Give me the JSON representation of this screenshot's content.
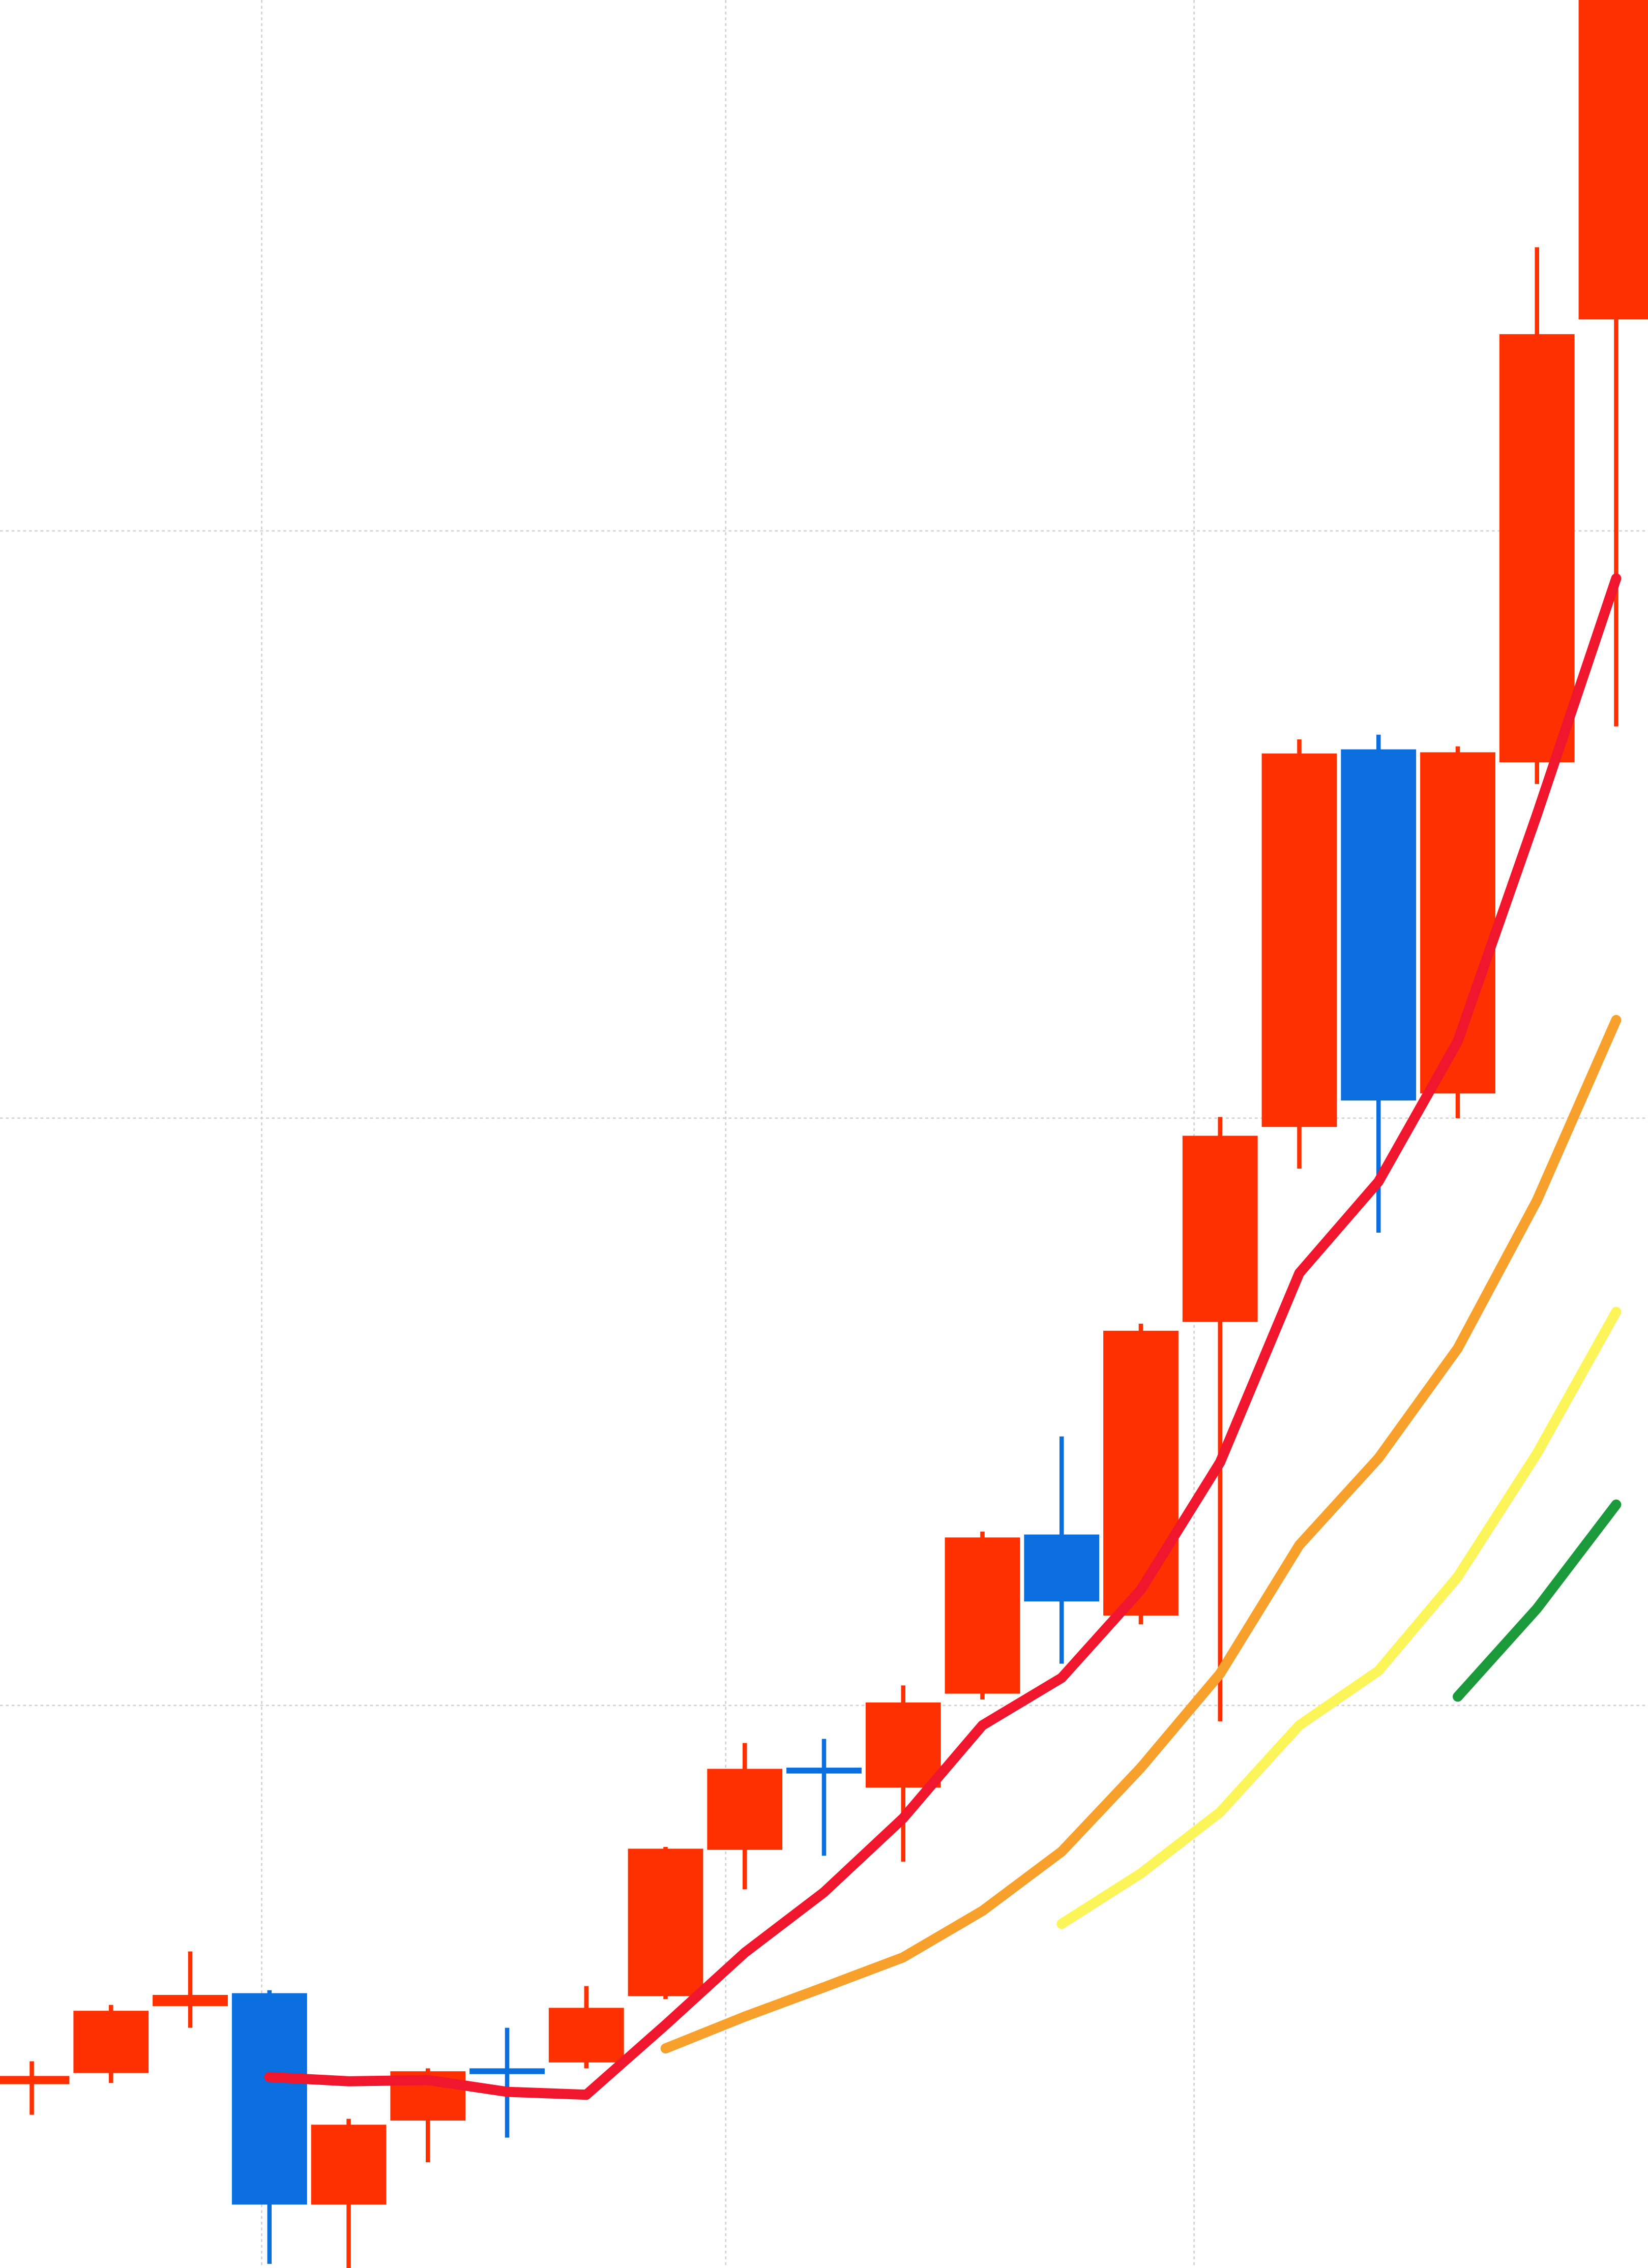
{
  "chart_data": {
    "type": "candlestick",
    "categories": [
      null,
      null,
      null,
      null,
      null,
      null,
      null,
      null,
      null,
      null,
      null,
      null,
      null,
      null,
      null,
      null,
      null,
      null,
      null,
      null,
      null
    ],
    "open": [
      0.355,
      0.374,
      0.488,
      0.51,
      0.15,
      0.293,
      0.382,
      0.392,
      0.505,
      0.754,
      0.894,
      0.86,
      1.02,
      1.291,
      1.153,
      1.653,
      1.985,
      2.628,
      2.042,
      2.606,
      3.36
    ],
    "high": [
      0.394,
      0.49,
      0.581,
      0.515,
      0.296,
      0.382,
      0.451,
      0.522,
      0.759,
      0.936,
      0.943,
      1.034,
      1.296,
      1.458,
      1.65,
      2.002,
      2.645,
      2.653,
      2.633,
      3.483,
      3.978
    ],
    "low": [
      0.303,
      0.357,
      0.451,
      0.049,
      0.042,
      0.222,
      0.264,
      0.382,
      0.5,
      0.687,
      0.744,
      0.734,
      1.01,
      1.071,
      1.138,
      0.973,
      1.914,
      1.805,
      2.0,
      2.569,
      2.667
    ],
    "close": [
      0.369,
      0.48,
      0.507,
      0.15,
      0.286,
      0.377,
      0.377,
      0.485,
      0.756,
      0.892,
      0.884,
      1.005,
      1.286,
      1.177,
      1.638,
      1.97,
      2.621,
      2.03,
      2.623,
      3.335,
      3.978
    ],
    "up_color": "#ff3000",
    "down_color": "#0a6ede",
    "lines": [
      {
        "color": "#f0162e",
        "values": [
          null,
          null,
          null,
          0.367,
          0.36,
          0.362,
          0.342,
          0.337,
          0.456,
          0.579,
          0.682,
          0.808,
          0.966,
          1.047,
          1.197,
          1.414,
          1.736,
          1.892,
          2.131,
          2.517,
          2.919
        ]
      },
      {
        "color": "#f7a02c",
        "values": [
          null,
          null,
          null,
          null,
          null,
          null,
          null,
          null,
          0.416,
          0.47,
          0.52,
          0.571,
          0.65,
          0.751,
          0.894,
          1.054,
          1.273,
          1.421,
          1.608,
          1.86,
          2.167
        ]
      },
      {
        "color": "#fbf55a",
        "values": [
          null,
          null,
          null,
          null,
          null,
          null,
          null,
          null,
          null,
          null,
          null,
          null,
          null,
          0.628,
          0.714,
          0.818,
          0.966,
          1.059,
          1.219,
          1.429,
          1.67
        ]
      },
      {
        "color": "#1a9a3a",
        "values": [
          null,
          null,
          null,
          null,
          null,
          null,
          null,
          null,
          null,
          null,
          null,
          null,
          null,
          null,
          null,
          null,
          null,
          null,
          1.015,
          1.165,
          1.342
        ]
      }
    ],
    "ylim": [
      0.042,
      3.904
    ],
    "yticks": [
      1,
      2,
      3
    ],
    "grid": true
  }
}
